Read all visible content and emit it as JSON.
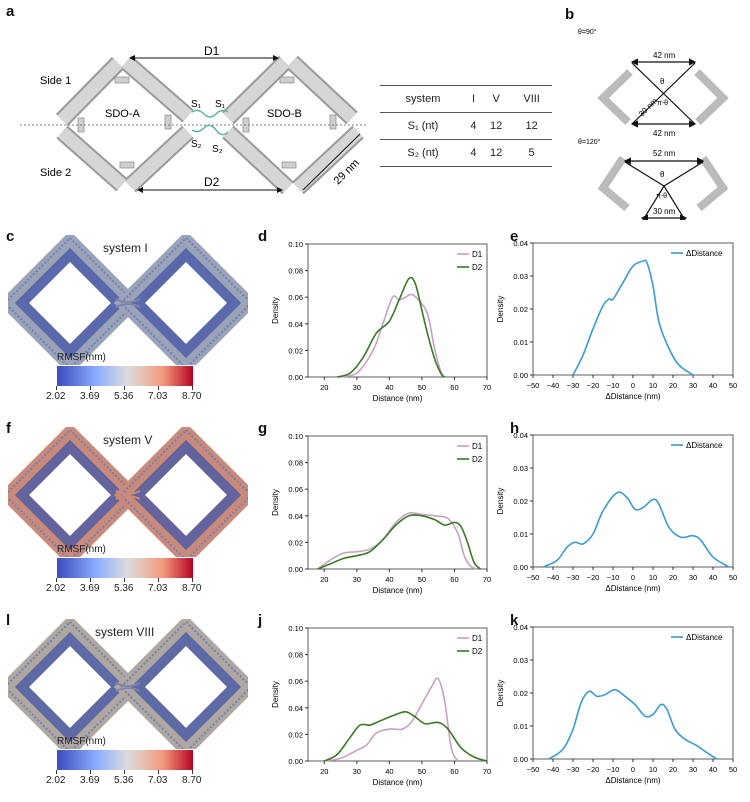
{
  "panels": {
    "a": "a",
    "b": "b",
    "c": "c",
    "d": "d",
    "e": "e",
    "f": "f",
    "g": "g",
    "h": "h",
    "l": "l",
    "j": "j",
    "k": "k"
  },
  "diagram_a": {
    "d1": "D1",
    "d2": "D2",
    "side1": "Side 1",
    "side2": "Side 2",
    "sdo_a": "SDO-A",
    "sdo_b": "SDO-B",
    "s1": "S₁",
    "s2": "S₂",
    "length": "29 nm"
  },
  "table": {
    "headers": [
      "system",
      "I",
      "V",
      "VIII"
    ],
    "rows": [
      [
        "S₁ (nt)",
        "4",
        "12",
        "12"
      ],
      [
        "S₂ (nt)",
        "4",
        "12",
        "5"
      ]
    ]
  },
  "diagram_b": {
    "top": {
      "angle": "θ=90°",
      "top_width": "42 nm",
      "bottom_width": "42 nm",
      "side": "30 nm",
      "theta": "θ",
      "pi_theta": "π-θ"
    },
    "bottom": {
      "angle": "θ=120°",
      "top_width": "52 nm",
      "bottom_width": "30 nm",
      "theta": "θ",
      "pi_theta": "π-θ"
    }
  },
  "structures": [
    {
      "title": "system I",
      "colorbar_label": "RMSF(nm)",
      "ticks": [
        "2.02",
        "3.69",
        "5.36",
        "7.03",
        "8.70"
      ]
    },
    {
      "title": "system V",
      "colorbar_label": "RMSF(nm)",
      "ticks": [
        "2.02",
        "3.69",
        "5.36",
        "7.03",
        "8.70"
      ]
    },
    {
      "title": "system VIII",
      "colorbar_label": "RMSF(nm)",
      "ticks": [
        "2.02",
        "3.69",
        "5.36",
        "7.03",
        "8.70"
      ]
    }
  ],
  "colors": {
    "d1": "#c9a0c4",
    "d2": "#3b7a24",
    "delta": "#3a9ad6"
  },
  "chart_data": [
    {
      "id": "d",
      "type": "line",
      "xlabel": "Distance (nm)",
      "ylabel": "Density",
      "xlim": [
        15,
        70
      ],
      "ylim": [
        0,
        0.1
      ],
      "xticks": [
        20,
        30,
        40,
        50,
        60,
        70
      ],
      "yticks": [
        "0.00",
        "0.02",
        "0.04",
        "0.06",
        "0.08",
        "0.10"
      ],
      "legend": "top-right",
      "series": [
        {
          "name": "D1",
          "points": [
            [
              25,
              0
            ],
            [
              30,
              0.003
            ],
            [
              35,
              0.02
            ],
            [
              38,
              0.04
            ],
            [
              41,
              0.06
            ],
            [
              43,
              0.058
            ],
            [
              45,
              0.06
            ],
            [
              47,
              0.062
            ],
            [
              50,
              0.055
            ],
            [
              52,
              0.045
            ],
            [
              54,
              0.02
            ],
            [
              56,
              0.003
            ],
            [
              57,
              0
            ]
          ]
        },
        {
          "name": "D2",
          "points": [
            [
              24,
              0
            ],
            [
              28,
              0.003
            ],
            [
              32,
              0.015
            ],
            [
              36,
              0.033
            ],
            [
              40,
              0.042
            ],
            [
              43,
              0.058
            ],
            [
              46,
              0.074
            ],
            [
              48,
              0.07
            ],
            [
              50,
              0.05
            ],
            [
              52,
              0.03
            ],
            [
              54,
              0.013
            ],
            [
              56,
              0.002
            ],
            [
              57,
              0
            ]
          ]
        }
      ]
    },
    {
      "id": "e",
      "type": "line",
      "xlabel": "ΔDistance (nm)",
      "ylabel": "Density",
      "xlim": [
        -50,
        50
      ],
      "ylim": [
        0,
        0.04
      ],
      "xticks": [
        -50,
        -40,
        -30,
        -20,
        -10,
        0,
        10,
        20,
        30,
        40,
        50
      ],
      "yticks": [
        "0.00",
        "0.01",
        "0.02",
        "0.03",
        "0.04"
      ],
      "legend": "top-right",
      "series": [
        {
          "name": "ΔDistance",
          "points": [
            [
              -30,
              0
            ],
            [
              -25,
              0.006
            ],
            [
              -20,
              0.014
            ],
            [
              -15,
              0.021
            ],
            [
              -12,
              0.023
            ],
            [
              -10,
              0.023
            ],
            [
              -5,
              0.028
            ],
            [
              0,
              0.033
            ],
            [
              5,
              0.0345
            ],
            [
              7,
              0.034
            ],
            [
              10,
              0.027
            ],
            [
              13,
              0.016
            ],
            [
              18,
              0.008
            ],
            [
              23,
              0.003
            ],
            [
              30,
              0
            ]
          ]
        }
      ]
    },
    {
      "id": "g",
      "type": "line",
      "xlabel": "Distance (nm)",
      "ylabel": "Density",
      "xlim": [
        15,
        70
      ],
      "ylim": [
        0,
        0.1
      ],
      "xticks": [
        20,
        30,
        40,
        50,
        60,
        70
      ],
      "yticks": [
        "0.00",
        "0.02",
        "0.04",
        "0.06",
        "0.08",
        "0.10"
      ],
      "legend": "top-right",
      "series": [
        {
          "name": "D1",
          "points": [
            [
              18,
              0
            ],
            [
              22,
              0.007
            ],
            [
              26,
              0.012
            ],
            [
              30,
              0.013
            ],
            [
              34,
              0.015
            ],
            [
              38,
              0.022
            ],
            [
              42,
              0.035
            ],
            [
              46,
              0.042
            ],
            [
              50,
              0.041
            ],
            [
              54,
              0.04
            ],
            [
              58,
              0.038
            ],
            [
              61,
              0.027
            ],
            [
              63,
              0.01
            ],
            [
              65,
              0.002
            ],
            [
              67,
              0
            ]
          ]
        },
        {
          "name": "D2",
          "points": [
            [
              18,
              0
            ],
            [
              22,
              0.004
            ],
            [
              26,
              0.008
            ],
            [
              30,
              0.01
            ],
            [
              34,
              0.013
            ],
            [
              38,
              0.022
            ],
            [
              42,
              0.033
            ],
            [
              46,
              0.04
            ],
            [
              50,
              0.04
            ],
            [
              54,
              0.037
            ],
            [
              57,
              0.033
            ],
            [
              60,
              0.035
            ],
            [
              62,
              0.032
            ],
            [
              64,
              0.02
            ],
            [
              66,
              0.005
            ],
            [
              68,
              0
            ]
          ]
        }
      ]
    },
    {
      "id": "h",
      "type": "line",
      "xlabel": "ΔDistance (nm)",
      "ylabel": "Density",
      "xlim": [
        -50,
        50
      ],
      "ylim": [
        0,
        0.04
      ],
      "xticks": [
        -50,
        -40,
        -30,
        -20,
        -10,
        0,
        10,
        20,
        30,
        40,
        50
      ],
      "yticks": [
        "0.00",
        "0.01",
        "0.02",
        "0.03",
        "0.04"
      ],
      "legend": "top-right",
      "series": [
        {
          "name": "ΔDistance",
          "points": [
            [
              -45,
              0
            ],
            [
              -38,
              0.002
            ],
            [
              -33,
              0.006
            ],
            [
              -29,
              0.0075
            ],
            [
              -25,
              0.007
            ],
            [
              -20,
              0.01
            ],
            [
              -15,
              0.017
            ],
            [
              -8,
              0.0225
            ],
            [
              -3,
              0.021
            ],
            [
              1,
              0.0175
            ],
            [
              5,
              0.018
            ],
            [
              10,
              0.0205
            ],
            [
              13,
              0.019
            ],
            [
              18,
              0.012
            ],
            [
              24,
              0.009
            ],
            [
              30,
              0.0095
            ],
            [
              34,
              0.008
            ],
            [
              40,
              0.003
            ],
            [
              48,
              0
            ]
          ]
        }
      ]
    },
    {
      "id": "j",
      "type": "line",
      "xlabel": "Distance (nm)",
      "ylabel": "Density",
      "xlim": [
        15,
        70
      ],
      "ylim": [
        0,
        0.1
      ],
      "xticks": [
        20,
        30,
        40,
        50,
        60,
        70
      ],
      "yticks": [
        "0.00",
        "0.02",
        "0.04",
        "0.06",
        "0.08",
        "0.10"
      ],
      "legend": "top-right",
      "series": [
        {
          "name": "D1",
          "points": [
            [
              20,
              0
            ],
            [
              25,
              0.002
            ],
            [
              30,
              0.008
            ],
            [
              33,
              0.012
            ],
            [
              36,
              0.021
            ],
            [
              40,
              0.024
            ],
            [
              44,
              0.024
            ],
            [
              47,
              0.03
            ],
            [
              50,
              0.043
            ],
            [
              53,
              0.056
            ],
            [
              55,
              0.062
            ],
            [
              57,
              0.045
            ],
            [
              59,
              0.01
            ],
            [
              61,
              0
            ]
          ]
        },
        {
          "name": "D2",
          "points": [
            [
              20,
              0
            ],
            [
              24,
              0.005
            ],
            [
              28,
              0.018
            ],
            [
              31,
              0.027
            ],
            [
              34,
              0.027
            ],
            [
              37,
              0.03
            ],
            [
              41,
              0.034
            ],
            [
              45,
              0.037
            ],
            [
              48,
              0.033
            ],
            [
              51,
              0.028
            ],
            [
              55,
              0.029
            ],
            [
              58,
              0.024
            ],
            [
              62,
              0.01
            ],
            [
              66,
              0.003
            ],
            [
              70,
              0
            ]
          ]
        }
      ]
    },
    {
      "id": "k",
      "type": "line",
      "xlabel": "ΔDistance (nm)",
      "ylabel": "Density",
      "xlim": [
        -50,
        50
      ],
      "ylim": [
        0,
        0.04
      ],
      "xticks": [
        -50,
        -40,
        -30,
        -20,
        -10,
        0,
        10,
        20,
        30,
        40,
        50
      ],
      "yticks": [
        "0.00",
        "0.01",
        "0.02",
        "0.03",
        "0.04"
      ],
      "legend": "top-right",
      "series": [
        {
          "name": "ΔDistance",
          "points": [
            [
              -42,
              0
            ],
            [
              -35,
              0.003
            ],
            [
              -30,
              0.009
            ],
            [
              -26,
              0.017
            ],
            [
              -22,
              0.0205
            ],
            [
              -18,
              0.019
            ],
            [
              -14,
              0.0195
            ],
            [
              -9,
              0.021
            ],
            [
              -4,
              0.019
            ],
            [
              1,
              0.0165
            ],
            [
              6,
              0.013
            ],
            [
              10,
              0.0135
            ],
            [
              14,
              0.0165
            ],
            [
              17,
              0.015
            ],
            [
              21,
              0.009
            ],
            [
              26,
              0.006
            ],
            [
              32,
              0.004
            ],
            [
              38,
              0.0015
            ],
            [
              42,
              0
            ]
          ]
        }
      ]
    }
  ]
}
